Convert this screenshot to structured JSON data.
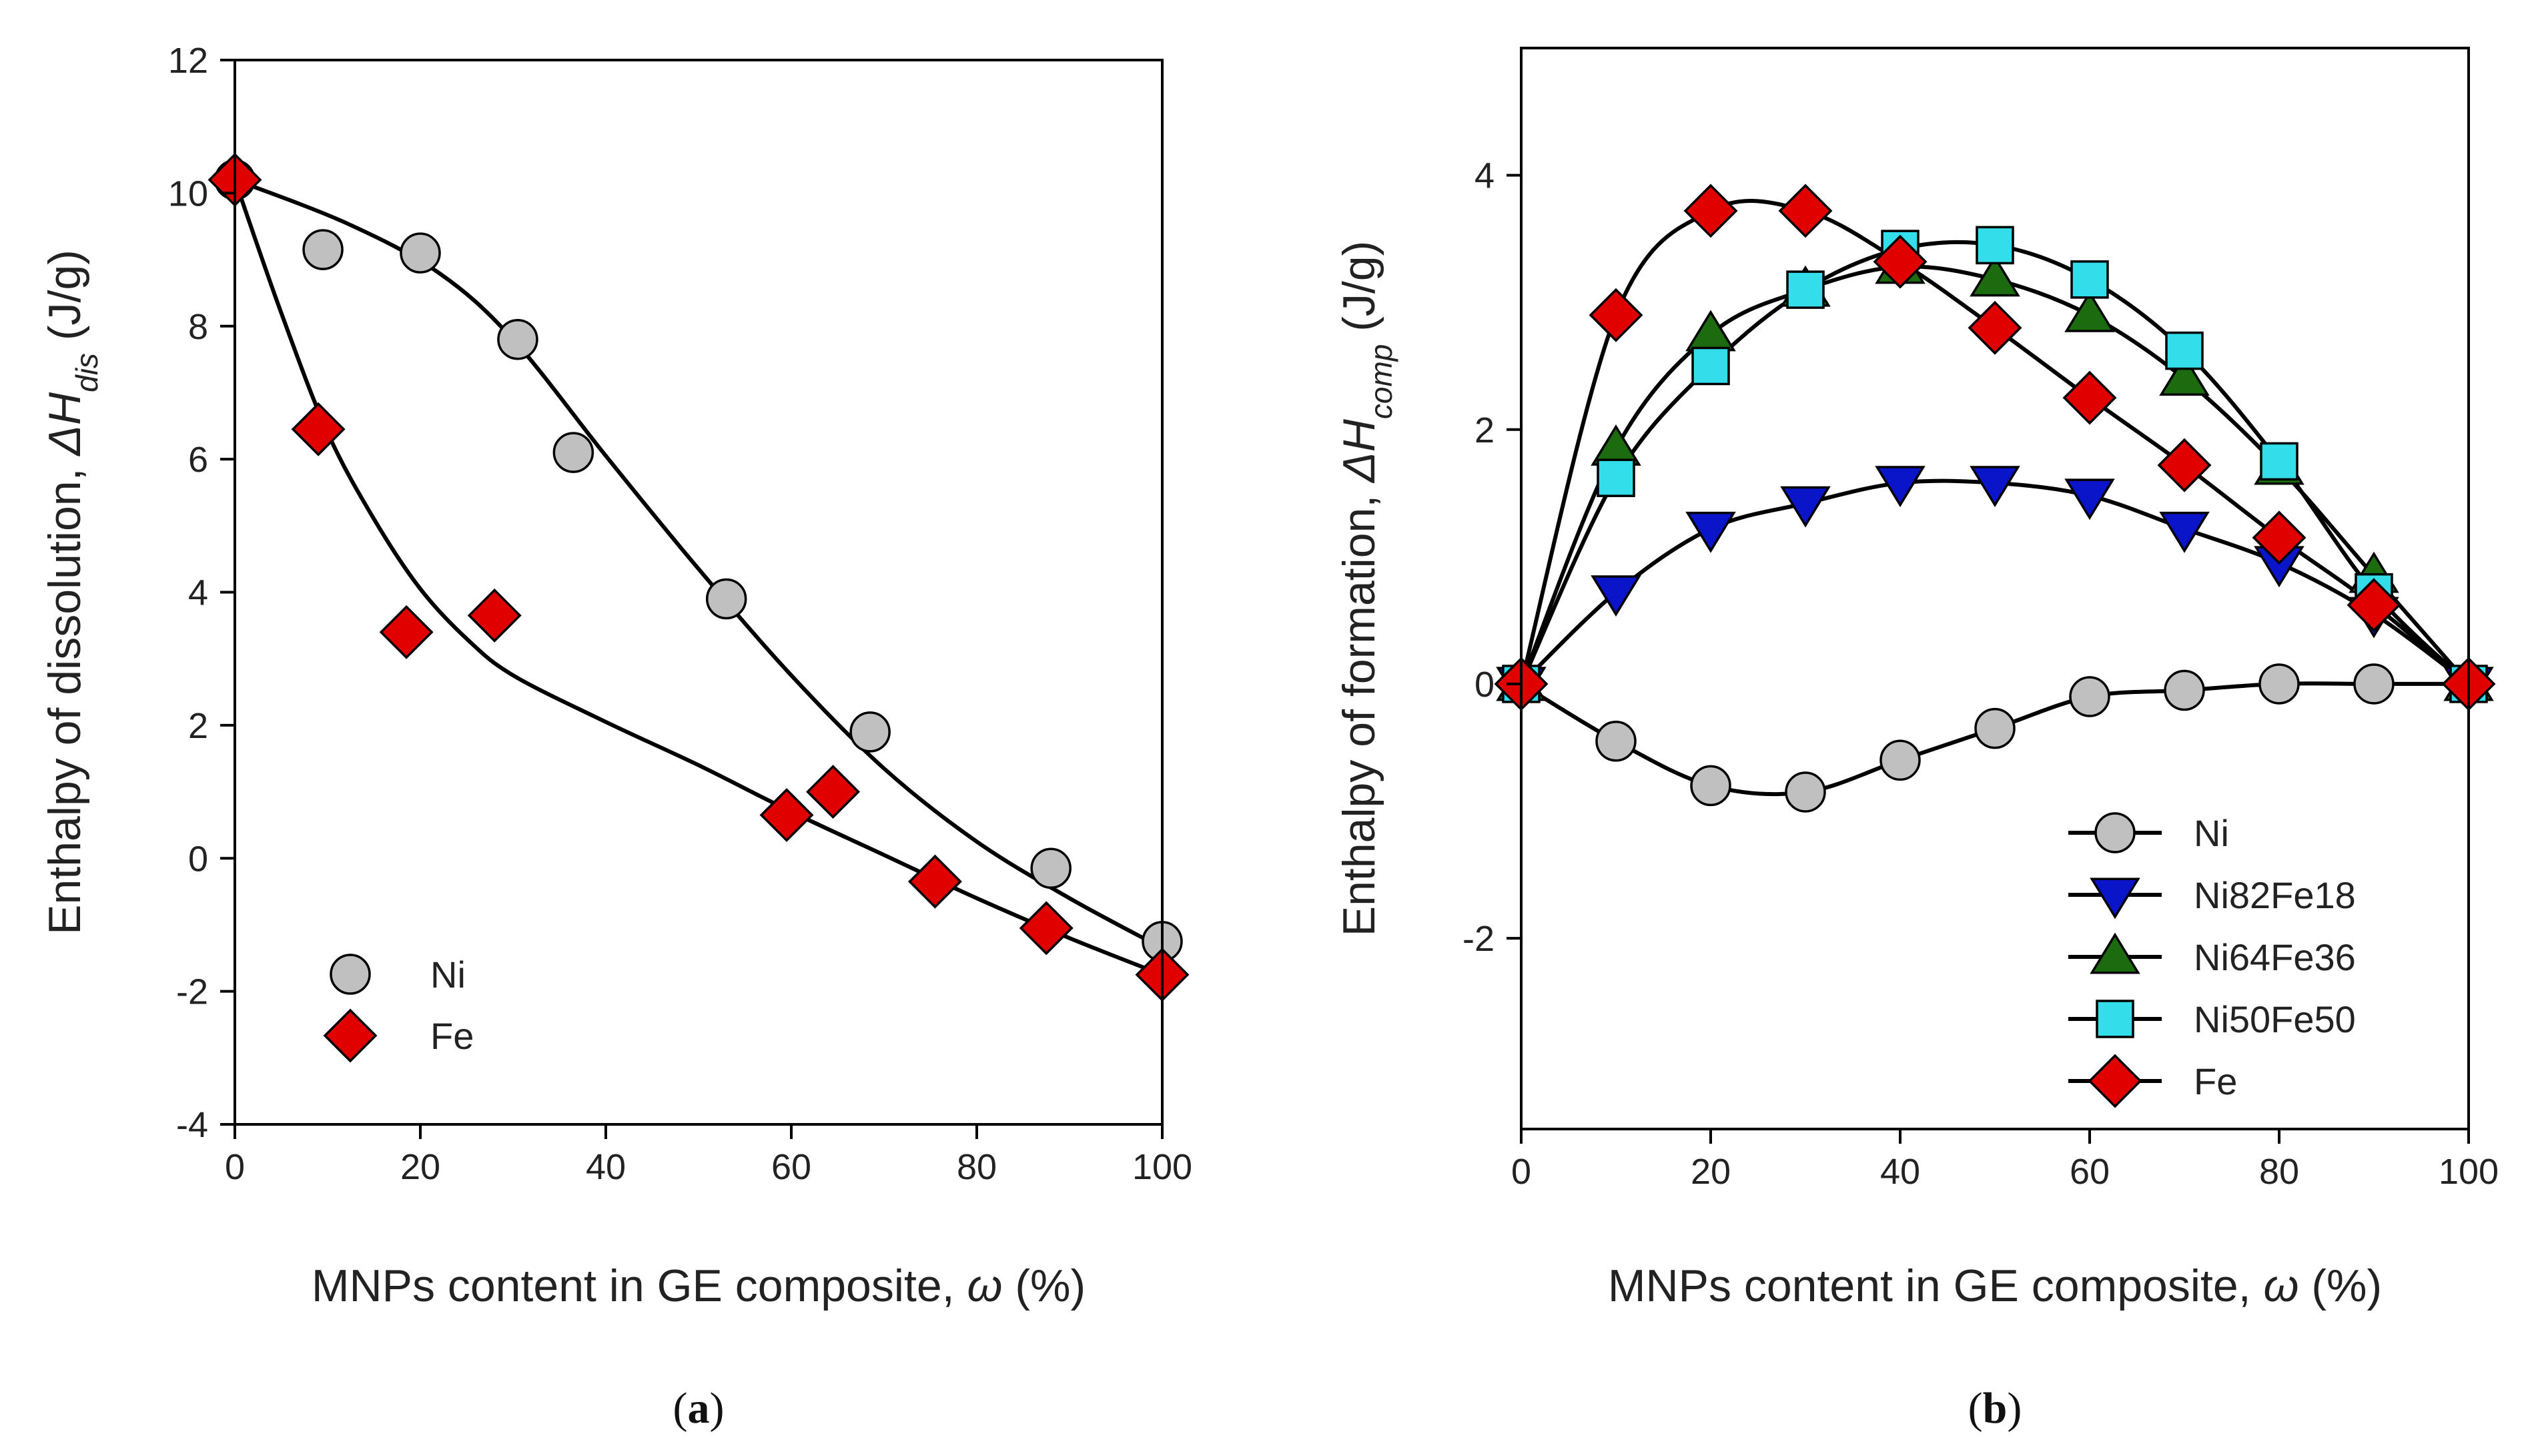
{
  "chart_data": [
    {
      "panel": "(a)",
      "panel_letter": "a",
      "type": "scatter",
      "xlabel": "MNPs content in GE composite, ω (%)",
      "xlabel_main": "MNPs content in GE composite,",
      "xlabel_symbol": "ω",
      "xlabel_unit": "(%)",
      "ylabel": "Enthalpy of dissolution, ΔHdis (J/g)",
      "ylabel_main": "Enthalpy of dissolution,",
      "ylabel_symbol": "ΔH",
      "ylabel_sub": "dis",
      "ylabel_unit": "(J/g)",
      "xlim": [
        0,
        100
      ],
      "ylim": [
        -4,
        12
      ],
      "xticks": [
        0,
        20,
        40,
        60,
        80,
        100
      ],
      "yticks": [
        -4,
        -2,
        0,
        2,
        4,
        6,
        8,
        10,
        12
      ],
      "legend_position": "bottom-left",
      "series": [
        {
          "name": "Ni",
          "marker": "circle",
          "color": "#c0c0c0",
          "points": [
            [
              0,
              10.2
            ],
            [
              9.5,
              9.15
            ],
            [
              20,
              9.1
            ],
            [
              30.5,
              7.8
            ],
            [
              36.5,
              6.1
            ],
            [
              53,
              3.9
            ],
            [
              68.5,
              1.9
            ],
            [
              88,
              -0.15
            ],
            [
              100,
              -1.25
            ]
          ],
          "fit": [
            [
              0,
              10.2
            ],
            [
              12,
              9.55
            ],
            [
              22,
              8.8
            ],
            [
              30,
              7.8
            ],
            [
              40,
              6.05
            ],
            [
              50,
              4.35
            ],
            [
              60,
              2.75
            ],
            [
              70,
              1.35
            ],
            [
              80,
              0.25
            ],
            [
              90,
              -0.6
            ],
            [
              100,
              -1.35
            ]
          ]
        },
        {
          "name": "Fe",
          "marker": "diamond",
          "color": "#e00000",
          "points": [
            [
              0,
              10.2
            ],
            [
              9,
              6.45
            ],
            [
              18.5,
              3.4
            ],
            [
              28,
              3.65
            ],
            [
              59.5,
              0.65
            ],
            [
              64.5,
              1.0
            ],
            [
              75.5,
              -0.35
            ],
            [
              87.5,
              -1.05
            ],
            [
              100,
              -1.75
            ]
          ],
          "fit": [
            [
              0,
              10.2
            ],
            [
              5,
              8.2
            ],
            [
              10,
              6.4
            ],
            [
              15,
              5.1
            ],
            [
              20,
              4.05
            ],
            [
              25,
              3.3
            ],
            [
              30,
              2.75
            ],
            [
              40,
              2.05
            ],
            [
              50,
              1.4
            ],
            [
              60,
              0.7
            ],
            [
              70,
              0.05
            ],
            [
              80,
              -0.6
            ],
            [
              90,
              -1.2
            ],
            [
              100,
              -1.75
            ]
          ]
        }
      ]
    },
    {
      "panel": "(b)",
      "panel_letter": "b",
      "type": "line",
      "xlabel": "MNPs content in GE composite, ω (%)",
      "xlabel_main": "MNPs content in GE composite,",
      "xlabel_symbol": "ω",
      "xlabel_unit": "(%)",
      "ylabel": "Enthalpy of formation, ΔHcomp (J/g)",
      "ylabel_main": "Enthalpy of formation,",
      "ylabel_symbol": "ΔH",
      "ylabel_sub": "comp",
      "ylabel_unit": "(J/g)",
      "xlim": [
        0,
        100
      ],
      "ylim": [
        -3.5,
        5
      ],
      "xticks": [
        0,
        20,
        40,
        60,
        80,
        100
      ],
      "yticks": [
        -2,
        0,
        2,
        4
      ],
      "legend_position": "bottom-right",
      "x": [
        0,
        10,
        20,
        30,
        40,
        50,
        60,
        70,
        80,
        90,
        100
      ],
      "series": [
        {
          "name": "Ni",
          "marker": "circle",
          "color": "#c0c0c0",
          "values": [
            0,
            -0.45,
            -0.8,
            -0.85,
            -0.6,
            -0.35,
            -0.1,
            -0.05,
            0,
            0,
            0
          ]
        },
        {
          "name": "Ni82Fe18",
          "marker": "triangle-down",
          "color": "#0a14c8",
          "values": [
            0,
            0.72,
            1.22,
            1.42,
            1.58,
            1.58,
            1.48,
            1.22,
            0.95,
            0.55,
            0
          ]
        },
        {
          "name": "Ni64Fe36",
          "marker": "triangle-up",
          "color": "#1d6b0f",
          "values": [
            0,
            1.85,
            2.75,
            3.1,
            3.28,
            3.18,
            2.9,
            2.4,
            1.7,
            0.85,
            0
          ]
        },
        {
          "name": "Ni50Fe50",
          "marker": "square",
          "color": "#33ddea",
          "values": [
            0,
            1.62,
            2.5,
            3.1,
            3.42,
            3.45,
            3.18,
            2.62,
            1.75,
            0.72,
            0
          ]
        },
        {
          "name": "Fe",
          "marker": "diamond",
          "color": "#e00000",
          "values": [
            0,
            2.9,
            3.72,
            3.72,
            3.32,
            2.8,
            2.25,
            1.72,
            1.15,
            0.62,
            0
          ]
        }
      ]
    }
  ]
}
